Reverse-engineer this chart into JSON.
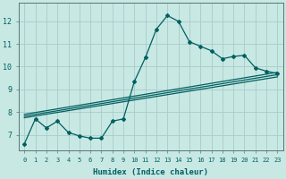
{
  "xlabel": "Humidex (Indice chaleur)",
  "ylabel": "",
  "bg_color": "#c8e8e4",
  "grid_color": "#a8ccc8",
  "line_color": "#006060",
  "xlim": [
    -0.5,
    23.5
  ],
  "ylim": [
    6.3,
    12.8
  ],
  "yticks": [
    7,
    8,
    9,
    10,
    11,
    12
  ],
  "xtick_labels": [
    "0",
    "1",
    "2",
    "3",
    "4",
    "5",
    "6",
    "7",
    "8",
    "9",
    "10",
    "11",
    "12",
    "13",
    "14",
    "15",
    "16",
    "17",
    "18",
    "19",
    "20",
    "21",
    "22",
    "23"
  ],
  "line1_x": [
    0,
    1,
    2,
    3,
    4,
    5,
    6,
    7,
    8,
    9,
    10,
    11,
    12,
    13,
    14,
    15,
    16,
    17,
    18,
    19,
    20,
    21,
    22,
    23
  ],
  "line1_y": [
    6.6,
    7.7,
    7.3,
    7.6,
    7.1,
    6.95,
    6.85,
    6.85,
    7.6,
    7.7,
    9.35,
    10.4,
    11.65,
    12.25,
    12.0,
    11.1,
    10.9,
    10.7,
    10.35,
    10.45,
    10.5,
    9.95,
    9.8,
    9.7
  ],
  "line2_x": [
    0,
    23
  ],
  "line2_y": [
    7.9,
    9.75
  ],
  "line3_x": [
    0,
    23
  ],
  "line3_y": [
    7.82,
    9.65
  ],
  "line4_x": [
    0,
    23
  ],
  "line4_y": [
    7.75,
    9.55
  ]
}
